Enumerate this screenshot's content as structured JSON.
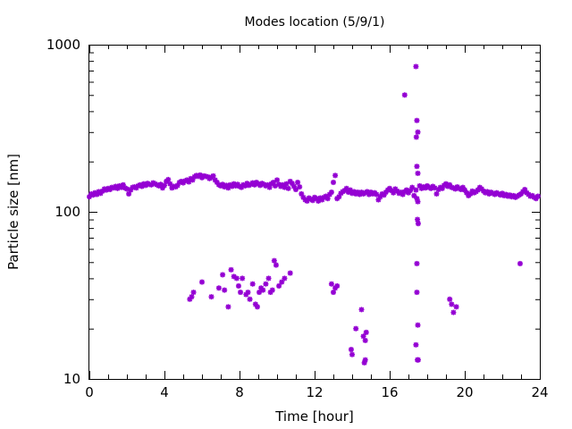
{
  "chart_data": {
    "type": "scatter",
    "title": "Modes location (5/9/1)",
    "xlabel": "Time [hour]",
    "ylabel": "Particle size [nm]",
    "xlim": [
      0,
      24
    ],
    "ylim": [
      10,
      1000
    ],
    "yscale": "log",
    "xticks": [
      0,
      4,
      8,
      12,
      16,
      20,
      24
    ],
    "yticks": [
      10,
      100,
      1000
    ],
    "marker_color": "#9400d3",
    "points": [
      [
        0.0,
        123
      ],
      [
        0.1,
        128
      ],
      [
        0.2,
        126
      ],
      [
        0.3,
        130
      ],
      [
        0.4,
        127
      ],
      [
        0.5,
        132
      ],
      [
        0.6,
        129
      ],
      [
        0.7,
        133
      ],
      [
        0.8,
        137
      ],
      [
        0.9,
        135
      ],
      [
        1.0,
        138
      ],
      [
        1.1,
        136
      ],
      [
        1.2,
        140
      ],
      [
        1.3,
        139
      ],
      [
        1.4,
        142
      ],
      [
        1.5,
        138
      ],
      [
        1.6,
        143
      ],
      [
        1.7,
        140
      ],
      [
        1.8,
        145
      ],
      [
        1.9,
        139
      ],
      [
        2.0,
        137
      ],
      [
        2.1,
        128
      ],
      [
        2.2,
        135
      ],
      [
        2.3,
        140
      ],
      [
        2.4,
        141
      ],
      [
        2.5,
        139
      ],
      [
        2.6,
        143
      ],
      [
        2.7,
        145
      ],
      [
        2.8,
        142
      ],
      [
        2.9,
        147
      ],
      [
        3.0,
        144
      ],
      [
        3.1,
        148
      ],
      [
        3.2,
        146
      ],
      [
        3.3,
        145
      ],
      [
        3.4,
        149
      ],
      [
        3.5,
        147
      ],
      [
        3.6,
        145
      ],
      [
        3.7,
        143
      ],
      [
        3.8,
        146
      ],
      [
        3.9,
        139
      ],
      [
        4.0,
        144
      ],
      [
        4.1,
        152
      ],
      [
        4.2,
        156
      ],
      [
        4.3,
        147
      ],
      [
        4.4,
        139
      ],
      [
        4.5,
        142
      ],
      [
        4.6,
        141
      ],
      [
        4.7,
        144
      ],
      [
        4.8,
        150
      ],
      [
        4.9,
        152
      ],
      [
        5.0,
        149
      ],
      [
        5.1,
        153
      ],
      [
        5.2,
        155
      ],
      [
        5.3,
        151
      ],
      [
        5.4,
        158
      ],
      [
        5.5,
        155
      ],
      [
        5.6,
        162
      ],
      [
        5.7,
        165
      ],
      [
        5.8,
        163
      ],
      [
        5.9,
        166
      ],
      [
        6.0,
        160
      ],
      [
        6.1,
        164
      ],
      [
        6.2,
        163
      ],
      [
        6.3,
        162
      ],
      [
        6.4,
        158
      ],
      [
        6.5,
        161
      ],
      [
        6.6,
        164
      ],
      [
        6.7,
        155
      ],
      [
        6.8,
        150
      ],
      [
        6.9,
        145
      ],
      [
        7.0,
        143
      ],
      [
        7.1,
        146
      ],
      [
        7.2,
        141
      ],
      [
        7.3,
        144
      ],
      [
        7.4,
        139
      ],
      [
        7.5,
        145
      ],
      [
        7.6,
        142
      ],
      [
        7.7,
        147
      ],
      [
        7.8,
        143
      ],
      [
        7.9,
        146
      ],
      [
        8.0,
        142
      ],
      [
        8.1,
        140
      ],
      [
        8.2,
        145
      ],
      [
        8.3,
        143
      ],
      [
        8.4,
        148
      ],
      [
        8.5,
        144
      ],
      [
        8.6,
        146
      ],
      [
        8.7,
        149
      ],
      [
        8.8,
        145
      ],
      [
        8.9,
        150
      ],
      [
        9.0,
        147
      ],
      [
        9.1,
        144
      ],
      [
        9.2,
        148
      ],
      [
        9.3,
        146
      ],
      [
        9.4,
        143
      ],
      [
        9.5,
        145
      ],
      [
        9.6,
        140
      ],
      [
        9.7,
        147
      ],
      [
        9.8,
        150
      ],
      [
        9.9,
        143
      ],
      [
        10.0,
        155
      ],
      [
        10.1,
        146
      ],
      [
        10.2,
        142
      ],
      [
        10.3,
        145
      ],
      [
        10.4,
        140
      ],
      [
        10.5,
        147
      ],
      [
        10.6,
        138
      ],
      [
        10.7,
        152
      ],
      [
        10.8,
        148
      ],
      [
        10.9,
        142
      ],
      [
        11.0,
        136
      ],
      [
        11.1,
        150
      ],
      [
        11.2,
        141
      ],
      [
        11.3,
        128
      ],
      [
        11.4,
        122
      ],
      [
        11.5,
        118
      ],
      [
        11.6,
        116
      ],
      [
        11.7,
        121
      ],
      [
        11.8,
        119
      ],
      [
        11.9,
        117
      ],
      [
        12.0,
        122
      ],
      [
        12.1,
        120
      ],
      [
        12.2,
        116
      ],
      [
        12.3,
        121
      ],
      [
        12.4,
        118
      ],
      [
        12.5,
        122
      ],
      [
        12.6,
        124
      ],
      [
        12.7,
        120
      ],
      [
        12.8,
        127
      ],
      [
        12.9,
        131
      ],
      [
        13.0,
        150
      ],
      [
        13.1,
        165
      ],
      [
        13.2,
        120
      ],
      [
        13.3,
        123
      ],
      [
        13.4,
        129
      ],
      [
        13.5,
        132
      ],
      [
        13.6,
        134
      ],
      [
        13.7,
        138
      ],
      [
        13.8,
        131
      ],
      [
        13.9,
        135
      ],
      [
        14.0,
        129
      ],
      [
        14.1,
        132
      ],
      [
        14.2,
        128
      ],
      [
        14.3,
        131
      ],
      [
        14.4,
        127
      ],
      [
        14.5,
        131
      ],
      [
        14.6,
        128
      ],
      [
        14.7,
        130
      ],
      [
        14.8,
        132
      ],
      [
        14.9,
        127
      ],
      [
        15.0,
        131
      ],
      [
        15.1,
        128
      ],
      [
        15.2,
        130
      ],
      [
        15.3,
        127
      ],
      [
        15.4,
        118
      ],
      [
        15.5,
        123
      ],
      [
        15.6,
        128
      ],
      [
        15.7,
        126
      ],
      [
        15.8,
        131
      ],
      [
        15.9,
        135
      ],
      [
        16.0,
        138
      ],
      [
        16.1,
        134
      ],
      [
        16.2,
        130
      ],
      [
        16.3,
        137
      ],
      [
        16.4,
        133
      ],
      [
        16.5,
        129
      ],
      [
        16.6,
        131
      ],
      [
        16.7,
        127
      ],
      [
        16.8,
        132
      ],
      [
        16.9,
        135
      ],
      [
        17.0,
        130
      ],
      [
        17.1,
        134
      ],
      [
        17.2,
        140
      ],
      [
        17.3,
        125
      ],
      [
        17.6,
        143
      ],
      [
        17.7,
        138
      ],
      [
        17.8,
        141
      ],
      [
        17.9,
        139
      ],
      [
        18.0,
        143
      ],
      [
        18.1,
        140
      ],
      [
        18.2,
        138
      ],
      [
        18.3,
        142
      ],
      [
        18.4,
        139
      ],
      [
        18.5,
        128
      ],
      [
        18.6,
        136
      ],
      [
        18.7,
        140
      ],
      [
        18.8,
        138
      ],
      [
        18.9,
        144
      ],
      [
        19.0,
        147
      ],
      [
        19.1,
        142
      ],
      [
        19.2,
        145
      ],
      [
        19.3,
        140
      ],
      [
        19.4,
        139
      ],
      [
        19.5,
        137
      ],
      [
        19.6,
        141
      ],
      [
        19.7,
        138
      ],
      [
        19.8,
        136
      ],
      [
        19.9,
        140
      ],
      [
        20.0,
        135
      ],
      [
        20.1,
        130
      ],
      [
        20.2,
        125
      ],
      [
        20.3,
        128
      ],
      [
        20.4,
        133
      ],
      [
        20.5,
        130
      ],
      [
        20.6,
        132
      ],
      [
        20.7,
        135
      ],
      [
        20.8,
        140
      ],
      [
        20.9,
        137
      ],
      [
        21.0,
        133
      ],
      [
        21.1,
        130
      ],
      [
        21.2,
        132
      ],
      [
        21.3,
        128
      ],
      [
        21.4,
        131
      ],
      [
        21.5,
        129
      ],
      [
        21.6,
        127
      ],
      [
        21.7,
        130
      ],
      [
        21.8,
        128
      ],
      [
        21.9,
        126
      ],
      [
        22.0,
        129
      ],
      [
        22.1,
        125
      ],
      [
        22.2,
        127
      ],
      [
        22.3,
        124
      ],
      [
        22.4,
        126
      ],
      [
        22.5,
        123
      ],
      [
        22.6,
        125
      ],
      [
        22.7,
        122
      ],
      [
        22.8,
        124
      ],
      [
        22.9,
        126
      ],
      [
        23.0,
        128
      ],
      [
        23.1,
        132
      ],
      [
        23.2,
        136
      ],
      [
        23.3,
        130
      ],
      [
        23.4,
        127
      ],
      [
        23.5,
        124
      ],
      [
        23.6,
        125
      ],
      [
        23.7,
        122
      ],
      [
        23.8,
        120
      ],
      [
        23.9,
        124
      ],
      [
        5.35,
        30
      ],
      [
        5.45,
        31
      ],
      [
        5.55,
        33
      ],
      [
        6.0,
        38
      ],
      [
        6.5,
        31
      ],
      [
        6.9,
        35
      ],
      [
        7.1,
        42
      ],
      [
        7.2,
        34
      ],
      [
        7.4,
        27
      ],
      [
        7.55,
        45
      ],
      [
        7.7,
        41
      ],
      [
        7.85,
        40
      ],
      [
        7.95,
        36
      ],
      [
        8.05,
        33
      ],
      [
        8.15,
        40
      ],
      [
        8.35,
        32
      ],
      [
        8.45,
        33
      ],
      [
        8.55,
        30
      ],
      [
        8.7,
        37
      ],
      [
        8.85,
        28
      ],
      [
        8.95,
        27
      ],
      [
        9.05,
        33
      ],
      [
        9.15,
        35
      ],
      [
        9.25,
        34
      ],
      [
        9.4,
        37
      ],
      [
        9.55,
        40
      ],
      [
        9.65,
        33
      ],
      [
        9.75,
        34
      ],
      [
        9.85,
        51
      ],
      [
        9.95,
        48
      ],
      [
        10.1,
        36
      ],
      [
        10.25,
        38
      ],
      [
        10.4,
        40
      ],
      [
        10.7,
        43
      ],
      [
        12.9,
        37
      ],
      [
        13.0,
        33
      ],
      [
        13.1,
        35
      ],
      [
        13.2,
        36
      ],
      [
        13.95,
        15
      ],
      [
        14.0,
        14
      ],
      [
        14.2,
        20
      ],
      [
        14.5,
        26
      ],
      [
        14.6,
        18
      ],
      [
        14.7,
        17
      ],
      [
        14.75,
        19
      ],
      [
        14.7,
        13
      ],
      [
        14.65,
        12.5
      ],
      [
        16.8,
        500
      ],
      [
        17.4,
        740
      ],
      [
        17.45,
        352
      ],
      [
        17.5,
        300
      ],
      [
        17.42,
        280
      ],
      [
        17.45,
        187
      ],
      [
        17.5,
        170
      ],
      [
        17.4,
        135
      ],
      [
        17.45,
        120
      ],
      [
        17.5,
        115
      ],
      [
        17.48,
        90
      ],
      [
        17.52,
        85
      ],
      [
        17.45,
        49
      ],
      [
        17.45,
        33
      ],
      [
        17.5,
        21
      ],
      [
        17.4,
        16
      ],
      [
        17.48,
        13
      ],
      [
        17.52,
        13
      ],
      [
        19.2,
        30
      ],
      [
        19.3,
        28
      ],
      [
        19.4,
        25
      ],
      [
        19.55,
        27
      ],
      [
        22.95,
        49
      ]
    ]
  }
}
